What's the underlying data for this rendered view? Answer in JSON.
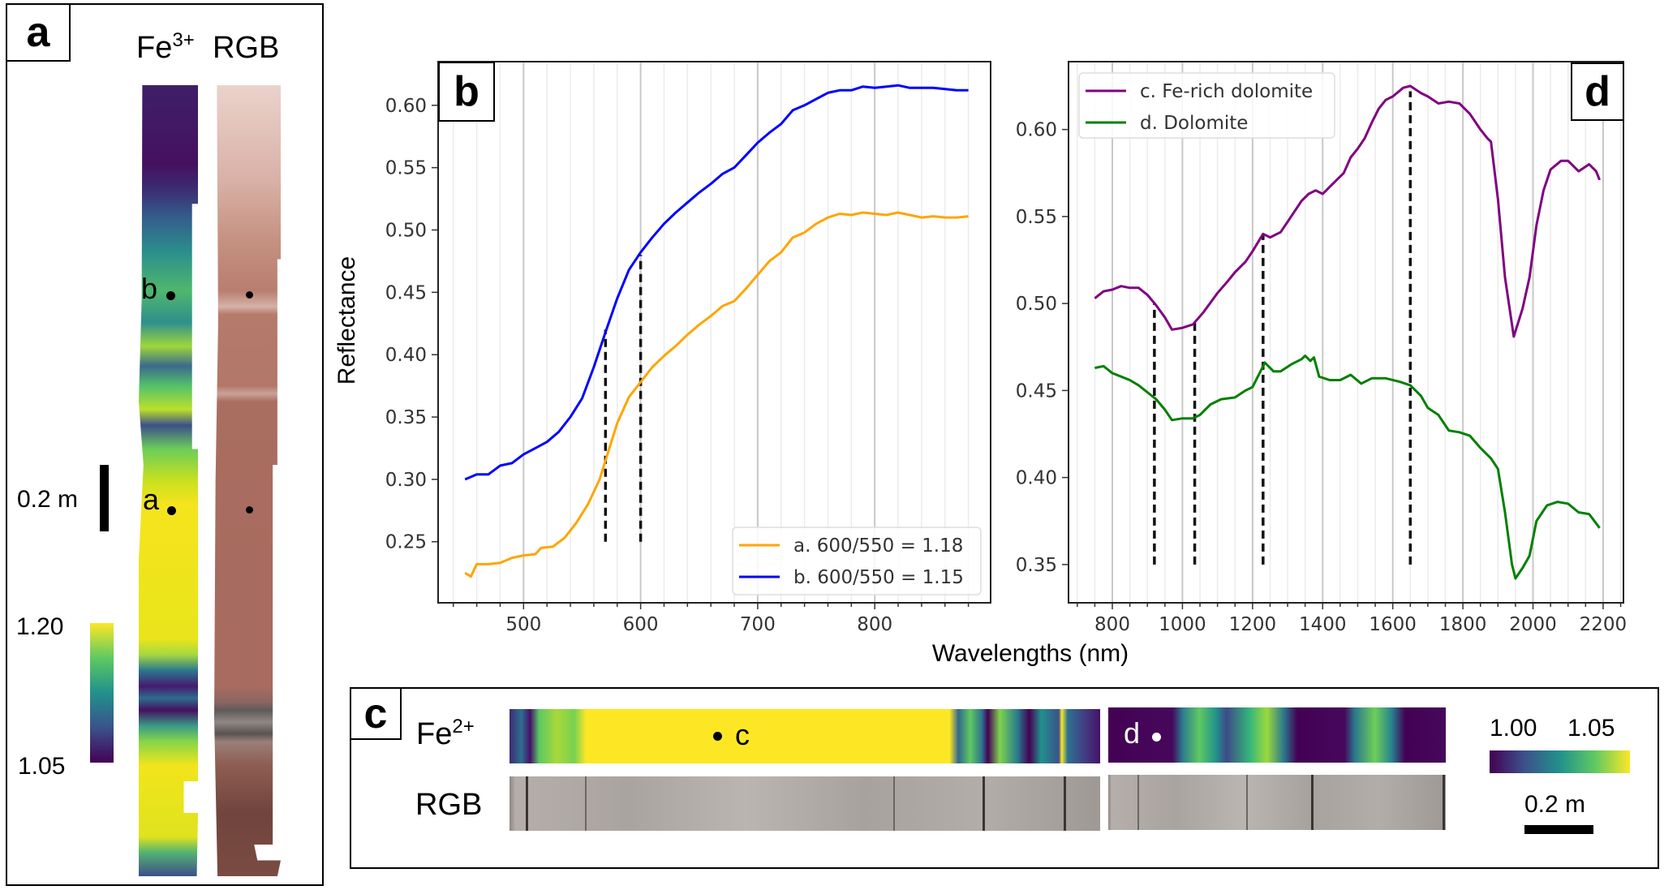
{
  "panel_a": {
    "label": "a",
    "title_fe": "Fe",
    "title_fe_sup": "3+",
    "title_rgb": "RGB",
    "point_labels": [
      "b",
      "a"
    ],
    "scale_bar": "0.2 m",
    "colorbar": {
      "max": "1.20",
      "min": "1.05",
      "colormap": "viridis"
    }
  },
  "panel_c": {
    "label": "c",
    "row_fe": "Fe",
    "row_fe_sup": "2+",
    "row_rgb": "RGB",
    "point_labels": [
      "c",
      "d"
    ],
    "scale_bar": "0.2 m",
    "colorbar": {
      "min": "1.00",
      "max": "1.05",
      "colormap": "viridis"
    }
  },
  "chart_data": [
    {
      "panel": "b",
      "type": "line",
      "xlabel": "Wavelengths (nm)",
      "ylabel": "Reflectance",
      "xlim": [
        427,
        899
      ],
      "ylim": [
        0.201,
        0.635
      ],
      "xticks": [
        500,
        600,
        700,
        800
      ],
      "yticks": [
        "0.25",
        "0.30",
        "0.35",
        "0.40",
        "0.45",
        "0.50",
        "0.55",
        "0.60"
      ],
      "grid": true,
      "legend_position": "bottom-right",
      "series": [
        {
          "name": "a. 600/550 = 1.18",
          "color": "#ffa500",
          "x": [
            450,
            455,
            460,
            470,
            480,
            490,
            500,
            510,
            515,
            525,
            535,
            545,
            555,
            565,
            570,
            580,
            590,
            600,
            610,
            620,
            630,
            640,
            650,
            660,
            670,
            680,
            690,
            700,
            710,
            720,
            730,
            740,
            750,
            760,
            770,
            780,
            790,
            800,
            810,
            820,
            830,
            840,
            850,
            860,
            870,
            880
          ],
          "y": [
            0.225,
            0.222,
            0.232,
            0.232,
            0.233,
            0.237,
            0.239,
            0.24,
            0.245,
            0.246,
            0.253,
            0.265,
            0.28,
            0.3,
            0.315,
            0.345,
            0.366,
            0.378,
            0.39,
            0.399,
            0.407,
            0.416,
            0.424,
            0.431,
            0.439,
            0.443,
            0.453,
            0.464,
            0.475,
            0.482,
            0.494,
            0.498,
            0.505,
            0.51,
            0.513,
            0.512,
            0.514,
            0.513,
            0.512,
            0.514,
            0.512,
            0.51,
            0.511,
            0.51,
            0.51,
            0.511
          ]
        },
        {
          "name": "b. 600/550 = 1.15",
          "color": "#0000ff",
          "x": [
            450,
            460,
            470,
            480,
            490,
            500,
            510,
            520,
            530,
            540,
            550,
            560,
            570,
            580,
            590,
            600,
            610,
            620,
            630,
            640,
            650,
            660,
            670,
            680,
            690,
            700,
            710,
            720,
            730,
            740,
            750,
            760,
            770,
            780,
            790,
            800,
            810,
            820,
            830,
            840,
            850,
            860,
            870,
            880
          ],
          "y": [
            0.3,
            0.304,
            0.304,
            0.311,
            0.313,
            0.32,
            0.325,
            0.33,
            0.338,
            0.35,
            0.365,
            0.39,
            0.418,
            0.445,
            0.468,
            0.482,
            0.494,
            0.505,
            0.514,
            0.522,
            0.53,
            0.537,
            0.545,
            0.55,
            0.56,
            0.57,
            0.578,
            0.585,
            0.596,
            0.6,
            0.605,
            0.61,
            0.612,
            0.612,
            0.615,
            0.614,
            0.615,
            0.616,
            0.614,
            0.614,
            0.614,
            0.613,
            0.612,
            0.612
          ]
        }
      ],
      "dashed_lines": [
        {
          "x": 570,
          "y": [
            0.25,
            0.42
          ]
        },
        {
          "x": 600,
          "y": [
            0.25,
            0.48
          ]
        }
      ]
    },
    {
      "panel": "d",
      "type": "line",
      "xlim": [
        675,
        2258
      ],
      "ylim": [
        0.328,
        0.639
      ],
      "xticks": [
        800,
        1000,
        1200,
        1400,
        1600,
        1800,
        2000,
        2200
      ],
      "yticks": [
        "0.35",
        "0.40",
        "0.45",
        "0.50",
        "0.55",
        "0.60"
      ],
      "grid": true,
      "legend_position": "top-left",
      "series": [
        {
          "name": "c. Fe-rich dolomite",
          "color": "#800080",
          "x": [
            750,
            775,
            800,
            825,
            850,
            875,
            900,
            925,
            950,
            970,
            1000,
            1030,
            1060,
            1100,
            1130,
            1150,
            1180,
            1200,
            1230,
            1250,
            1280,
            1300,
            1320,
            1340,
            1360,
            1380,
            1400,
            1430,
            1460,
            1480,
            1500,
            1520,
            1540,
            1560,
            1580,
            1600,
            1630,
            1650,
            1680,
            1700,
            1730,
            1760,
            1790,
            1820,
            1850,
            1870,
            1880,
            1900,
            1920,
            1945,
            1970,
            1990,
            2010,
            2030,
            2050,
            2080,
            2100,
            2130,
            2160,
            2180,
            2190
          ],
          "y": [
            0.503,
            0.507,
            0.508,
            0.51,
            0.509,
            0.509,
            0.505,
            0.499,
            0.492,
            0.485,
            0.486,
            0.488,
            0.495,
            0.506,
            0.513,
            0.518,
            0.524,
            0.53,
            0.54,
            0.538,
            0.541,
            0.547,
            0.553,
            0.559,
            0.563,
            0.565,
            0.563,
            0.569,
            0.575,
            0.584,
            0.589,
            0.595,
            0.604,
            0.612,
            0.617,
            0.619,
            0.624,
            0.625,
            0.621,
            0.619,
            0.615,
            0.616,
            0.615,
            0.609,
            0.6,
            0.595,
            0.593,
            0.56,
            0.515,
            0.481,
            0.497,
            0.515,
            0.545,
            0.565,
            0.577,
            0.582,
            0.582,
            0.576,
            0.58,
            0.576,
            0.571
          ]
        },
        {
          "name": "d. Dolomite",
          "color": "#008000",
          "x": [
            750,
            775,
            800,
            825,
            850,
            875,
            900,
            925,
            950,
            970,
            1000,
            1030,
            1050,
            1080,
            1110,
            1150,
            1180,
            1200,
            1220,
            1235,
            1260,
            1280,
            1310,
            1340,
            1350,
            1365,
            1375,
            1390,
            1420,
            1450,
            1480,
            1510,
            1540,
            1580,
            1620,
            1650,
            1680,
            1700,
            1730,
            1760,
            1790,
            1820,
            1850,
            1880,
            1900,
            1920,
            1940,
            1950,
            1970,
            1990,
            2010,
            2040,
            2070,
            2100,
            2130,
            2160,
            2190
          ],
          "y": [
            0.463,
            0.464,
            0.46,
            0.458,
            0.456,
            0.453,
            0.449,
            0.445,
            0.439,
            0.433,
            0.434,
            0.434,
            0.436,
            0.442,
            0.445,
            0.446,
            0.45,
            0.452,
            0.46,
            0.466,
            0.461,
            0.461,
            0.465,
            0.468,
            0.47,
            0.467,
            0.469,
            0.458,
            0.456,
            0.456,
            0.459,
            0.454,
            0.457,
            0.457,
            0.455,
            0.453,
            0.447,
            0.44,
            0.436,
            0.427,
            0.426,
            0.424,
            0.417,
            0.411,
            0.405,
            0.38,
            0.35,
            0.342,
            0.348,
            0.355,
            0.375,
            0.384,
            0.386,
            0.385,
            0.38,
            0.379,
            0.371
          ]
        }
      ],
      "dashed_lines": [
        {
          "x": 920,
          "y": [
            0.35,
            0.5
          ]
        },
        {
          "x": 1035,
          "y": [
            0.35,
            0.49
          ]
        },
        {
          "x": 1230,
          "y": [
            0.35,
            0.54
          ]
        },
        {
          "x": 1650,
          "y": [
            0.35,
            0.622
          ]
        }
      ]
    }
  ]
}
